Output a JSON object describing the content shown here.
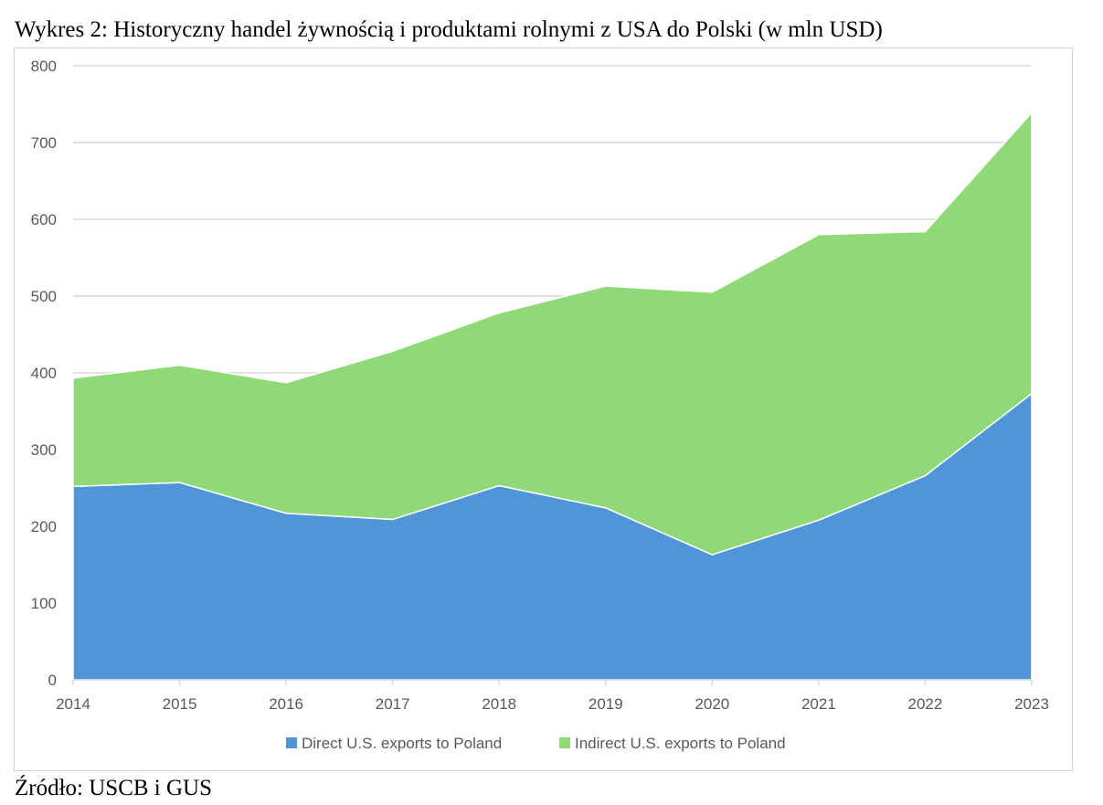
{
  "title": "Wykres 2: Historyczny handel żywnością i produktami rolnymi z USA do Polski (w mln USD)",
  "source": "Źródło: USCB i GUS",
  "chart_data": {
    "type": "area",
    "stacked": true,
    "categories": [
      "2014",
      "2015",
      "2016",
      "2017",
      "2018",
      "2019",
      "2020",
      "2021",
      "2022",
      "2023"
    ],
    "series": [
      {
        "name": "Direct U.S. exports to Poland",
        "color": "#4f95d8",
        "values": [
          252,
          257,
          217,
          209,
          253,
          224,
          163,
          208,
          266,
          373
        ]
      },
      {
        "name": "Indirect U.S. exports to Poland",
        "color": "#8fd978",
        "values": [
          141,
          153,
          170,
          219,
          225,
          289,
          342,
          372,
          318,
          366
        ]
      }
    ],
    "yticks": [
      0,
      100,
      200,
      300,
      400,
      500,
      600,
      700,
      800
    ],
    "ylim": [
      0,
      800
    ],
    "grid": true,
    "legend_position": "bottom"
  }
}
